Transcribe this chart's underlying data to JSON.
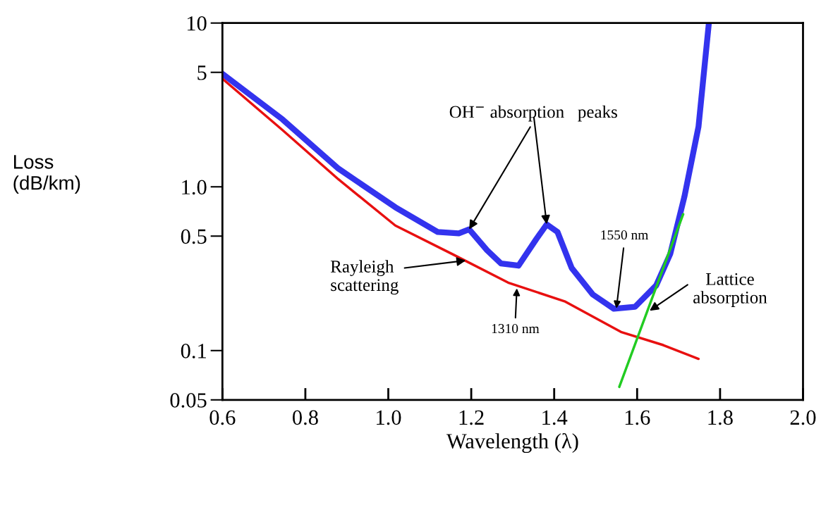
{
  "chart_data": {
    "type": "line",
    "xlabel": "Wavelength (λ)",
    "ylabel": "Loss\n(dB/km)",
    "log": "y",
    "grid": false,
    "legend": false,
    "marker": "none",
    "xlim": [
      0.6,
      2.0
    ],
    "ylim": [
      0.05,
      10
    ],
    "xticks": [
      0.6,
      0.8,
      {
        "value": 1.0,
        "label": "1.0"
      },
      1.2,
      1.4,
      1.6,
      1.8,
      {
        "value": 2.0,
        "label": "2.0"
      }
    ],
    "yticks": [
      0.05,
      0.1,
      0.5,
      {
        "value": 1,
        "label": "1.0"
      },
      5,
      10
    ],
    "series": [
      {
        "color": "#3333ee",
        "line_style": "solid",
        "x": [
          0.6,
          0.745,
          0.88,
          1.017,
          1.119,
          1.17,
          1.195,
          1.238,
          1.272,
          1.314,
          1.357,
          1.382,
          1.408,
          1.442,
          1.493,
          1.544,
          1.595,
          1.646,
          1.68,
          1.714,
          1.748,
          1.773
        ],
        "values": [
          4.9,
          2.58,
          1.29,
          0.75,
          0.53,
          0.52,
          0.55,
          0.41,
          0.34,
          0.33,
          0.48,
          0.59,
          0.53,
          0.32,
          0.22,
          0.18,
          0.185,
          0.25,
          0.39,
          0.87,
          2.33,
          10
        ]
      },
      {
        "color": "#e81010",
        "line_style": "solid",
        "x": [
          0.6,
          0.745,
          0.88,
          1.017,
          1.153,
          1.289,
          1.425,
          1.561,
          1.663,
          1.748
        ],
        "values": [
          4.57,
          2.22,
          1.11,
          0.58,
          0.39,
          0.26,
          0.2,
          0.13,
          0.108,
          0.089
        ]
      },
      {
        "color": "#22cc22",
        "line_style": "solid",
        "x": [
          1.557,
          1.711
        ],
        "values": [
          0.06,
          0.68
        ]
      }
    ],
    "annotations": [
      {
        "text": "OH$^{−}$ absorption   peaks",
        "x": 1.195,
        "y": 0.55
      },
      {
        "text": "Rayleigh\nscattering",
        "x": 1.187,
        "y": 0.355
      },
      {
        "text": "1310 nm",
        "x": 1.31,
        "y": 0.24
      },
      {
        "text": "1550 nm",
        "x": 1.55,
        "y": 0.181
      },
      {
        "text": "Lattice\nabsorption",
        "x": 1.63,
        "y": 0.175
      }
    ]
  }
}
